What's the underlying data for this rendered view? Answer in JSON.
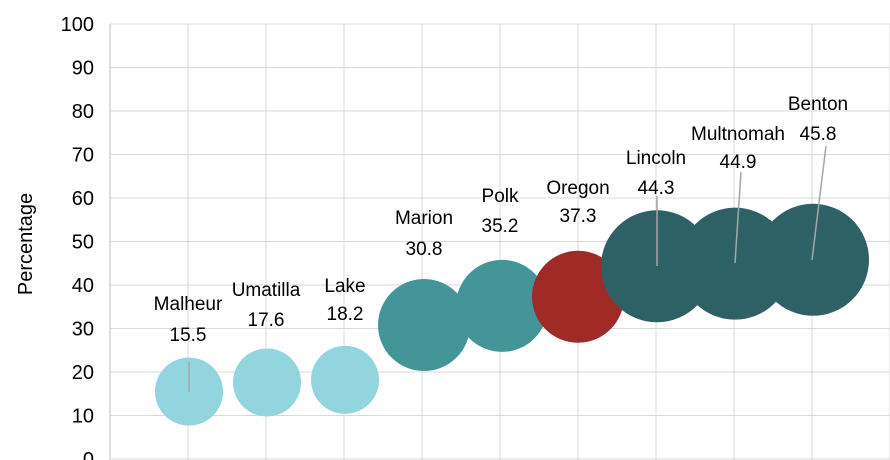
{
  "chart_data": {
    "type": "bubble",
    "ylabel": "Percentage",
    "ylim": [
      0,
      100
    ],
    "yticks": [
      0,
      10,
      20,
      30,
      40,
      50,
      60,
      70,
      80,
      90,
      100
    ],
    "grid": true,
    "points": [
      {
        "name": "Malheur",
        "value": 15.5,
        "label_value": "15.5",
        "color": "#92d5df",
        "size": "small"
      },
      {
        "name": "Umatilla",
        "value": 17.6,
        "label_value": "17.6",
        "color": "#92d5df",
        "size": "small"
      },
      {
        "name": "Lake",
        "value": 18.2,
        "label_value": "18.2",
        "color": "#92d5df",
        "size": "small"
      },
      {
        "name": "Marion",
        "value": 30.8,
        "label_value": "30.8",
        "color": "#439598",
        "size": "medium"
      },
      {
        "name": "Polk",
        "value": 35.2,
        "label_value": "35.2",
        "color": "#439598",
        "size": "medium"
      },
      {
        "name": "Oregon",
        "value": 37.3,
        "label_value": "37.3",
        "color": "#a02a26",
        "size": "medium"
      },
      {
        "name": "Lincoln",
        "value": 44.3,
        "label_value": "44.3",
        "color": "#2e6165",
        "size": "large"
      },
      {
        "name": "Multnomah",
        "value": 44.9,
        "label_value": "44.9",
        "color": "#2e6165",
        "size": "large"
      },
      {
        "name": "Benton",
        "value": 45.8,
        "label_value": "45.8",
        "color": "#2e6165",
        "size": "large"
      }
    ]
  }
}
